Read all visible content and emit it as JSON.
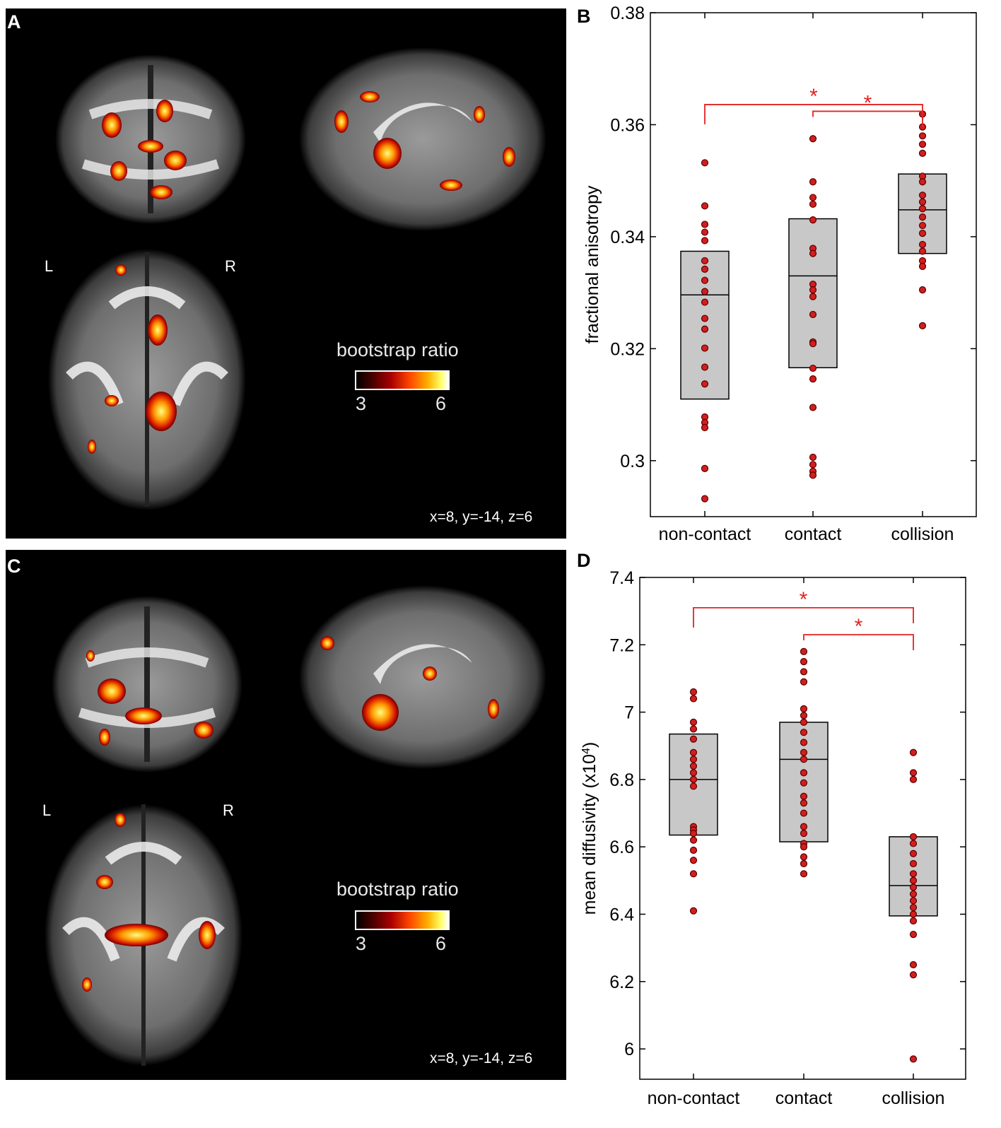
{
  "panels": {
    "A": {
      "letter": "A",
      "left_label": "L",
      "right_label": "R",
      "colorbar_title": "bootstrap ratio",
      "colorbar_min": "3",
      "colorbar_max": "6",
      "coords": "x=8, y=-14, z=6"
    },
    "C": {
      "letter": "C",
      "left_label": "L",
      "right_label": "R",
      "colorbar_title": "bootstrap ratio",
      "colorbar_min": "3",
      "colorbar_max": "6",
      "coords": "x=8, y=-14, z=6"
    }
  },
  "chart_data": [
    {
      "panel": "B",
      "type": "scatter",
      "ylabel": "fractional anisotropy",
      "ylim": [
        0.29,
        0.38
      ],
      "yticks": [
        "0.3",
        "0.32",
        "0.34",
        "0.36",
        "0.38"
      ],
      "categories": [
        "non-contact",
        "contact",
        "collision"
      ],
      "boxes": [
        {
          "category": "non-contact",
          "low": 0.311,
          "mid": 0.3296,
          "high": 0.3374
        },
        {
          "category": "contact",
          "low": 0.3166,
          "mid": 0.333,
          "high": 0.3432
        },
        {
          "category": "collision",
          "low": 0.337,
          "mid": 0.3448,
          "high": 0.3512
        }
      ],
      "points": [
        [
          0.3532,
          0.3455,
          0.3422,
          0.3408,
          0.3393,
          0.3357,
          0.3342,
          0.3322,
          0.3302,
          0.3283,
          0.3254,
          0.3235,
          0.3201,
          0.3167,
          0.3137,
          0.3078,
          0.3068,
          0.3059,
          0.2986,
          0.2932
        ],
        [
          0.3575,
          0.3498,
          0.347,
          0.3458,
          0.343,
          0.3379,
          0.337,
          0.3315,
          0.3305,
          0.3293,
          0.3261,
          0.3212,
          0.3209,
          0.3165,
          0.3146,
          0.3095,
          0.3006,
          0.2993,
          0.2981,
          0.2974
        ],
        [
          0.3619,
          0.3596,
          0.358,
          0.3565,
          0.3549,
          0.3508,
          0.3498,
          0.3474,
          0.3462,
          0.345,
          0.3435,
          0.342,
          0.3406,
          0.3386,
          0.3374,
          0.3357,
          0.3347,
          0.3305,
          0.3241
        ]
      ],
      "significance": [
        {
          "from": "non-contact",
          "to": "collision",
          "y": 0.3636,
          "label": "*"
        },
        {
          "from": "contact",
          "to": "collision",
          "y": 0.3624,
          "label": "*"
        }
      ]
    },
    {
      "panel": "D",
      "type": "scatter",
      "ylabel": "mean diffusivity (x10",
      "ylabel_sup": "4",
      "ylabel_end": ")",
      "ylim": [
        5.91,
        7.4
      ],
      "yticks": [
        "6",
        "6.2",
        "6.4",
        "6.6",
        "6.8",
        "7",
        "7.2",
        "7.4"
      ],
      "categories": [
        "non-contact",
        "contact",
        "collision"
      ],
      "boxes": [
        {
          "category": "non-contact",
          "low": 6.635,
          "mid": 6.8,
          "high": 6.935
        },
        {
          "category": "contact",
          "low": 6.615,
          "mid": 6.86,
          "high": 6.97
        },
        {
          "category": "collision",
          "low": 6.395,
          "mid": 6.485,
          "high": 6.63
        }
      ],
      "points": [
        [
          7.06,
          7.04,
          6.97,
          6.95,
          6.92,
          6.88,
          6.86,
          6.84,
          6.82,
          6.8,
          6.78,
          6.66,
          6.65,
          6.64,
          6.62,
          6.59,
          6.56,
          6.52,
          6.41
        ],
        [
          7.18,
          7.15,
          7.12,
          7.09,
          7.01,
          6.99,
          6.97,
          6.94,
          6.91,
          6.88,
          6.86,
          6.82,
          6.79,
          6.75,
          6.73,
          6.7,
          6.66,
          6.64,
          6.61,
          6.6,
          6.57,
          6.55,
          6.52
        ],
        [
          6.88,
          6.82,
          6.8,
          6.63,
          6.61,
          6.58,
          6.55,
          6.52,
          6.5,
          6.48,
          6.46,
          6.44,
          6.42,
          6.4,
          6.38,
          6.34,
          6.25,
          6.22,
          5.97
        ]
      ],
      "significance": [
        {
          "from": "non-contact",
          "to": "collision",
          "y": 7.31,
          "label": "*"
        },
        {
          "from": "contact",
          "to": "collision",
          "y": 7.23,
          "label": "*"
        }
      ]
    }
  ]
}
